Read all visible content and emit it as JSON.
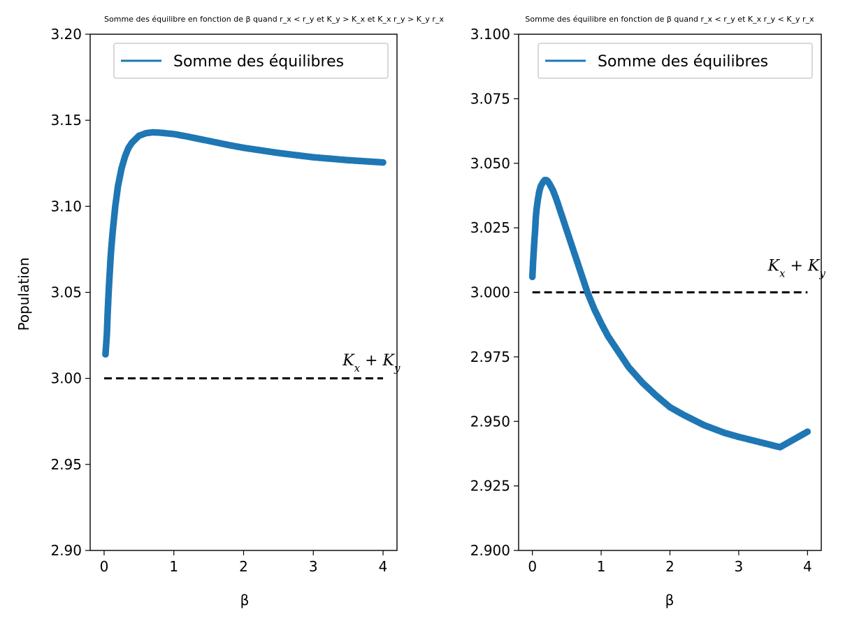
{
  "chart_data": [
    {
      "type": "scatter",
      "title": "Somme des équilibre en fonction de β quand r_x < r_y et K_y > K_x et K_x r_y > K_y r_x",
      "xlabel": "β",
      "ylabel": "Population",
      "xlim": [
        -0.2,
        4.2
      ],
      "ylim": [
        2.9,
        3.2
      ],
      "xticks": [
        "0",
        "1",
        "2",
        "3",
        "4"
      ],
      "yticks": [
        "2.90",
        "2.95",
        "3.00",
        "3.05",
        "3.10",
        "3.15",
        "3.20"
      ],
      "legend": {
        "label": "Somme des équilibres",
        "placement": "top-right"
      },
      "reference_line": {
        "y": 3.0,
        "x_range": [
          0,
          4
        ],
        "style": "dashed",
        "color": "#000000"
      },
      "annotation": {
        "text": "K_x + K_y",
        "x": 3.2,
        "y": 3.01
      },
      "series": [
        {
          "name": "Somme des équilibres",
          "color": "#1f77b4",
          "x": [
            0.02,
            0.04,
            0.05,
            0.06,
            0.07,
            0.08,
            0.09,
            0.1,
            0.12,
            0.14,
            0.16,
            0.18,
            0.2,
            0.25,
            0.3,
            0.35,
            0.4,
            0.5,
            0.6,
            0.7,
            0.8,
            1.0,
            1.2,
            1.5,
            1.8,
            2.0,
            2.5,
            3.0,
            3.5,
            4.0
          ],
          "y": [
            3.014,
            3.026,
            3.037,
            3.046,
            3.054,
            3.061,
            3.068,
            3.074,
            3.084,
            3.092,
            3.1,
            3.106,
            3.112,
            3.122,
            3.129,
            3.134,
            3.137,
            3.141,
            3.1425,
            3.143,
            3.1428,
            3.142,
            3.1405,
            3.138,
            3.1355,
            3.134,
            3.131,
            3.1285,
            3.1268,
            3.1255
          ]
        }
      ]
    },
    {
      "type": "scatter",
      "title": "Somme des équilibre en fonction de β quand r_x < r_y et K_x r_y < K_y r_x",
      "xlabel": "β",
      "ylabel": "",
      "xlim": [
        -0.2,
        4.2
      ],
      "ylim": [
        2.9,
        3.1
      ],
      "xticks": [
        "0",
        "1",
        "2",
        "3",
        "4"
      ],
      "yticks": [
        "2.900",
        "2.925",
        "2.950",
        "2.975",
        "3.000",
        "3.025",
        "3.050",
        "3.075",
        "3.100"
      ],
      "legend": {
        "label": "Somme des équilibres",
        "placement": "top-right"
      },
      "reference_line": {
        "y": 3.0,
        "x_range": [
          0,
          4
        ],
        "style": "dashed",
        "color": "#000000"
      },
      "annotation": {
        "text": "K_x + K_y",
        "x": 3.2,
        "y": 3.01
      },
      "series": [
        {
          "name": "Somme des équilibres",
          "color": "#1f77b4",
          "x": [
            0.0,
            0.01,
            0.02,
            0.03,
            0.04,
            0.05,
            0.06,
            0.08,
            0.1,
            0.12,
            0.15,
            0.18,
            0.2,
            0.22,
            0.25,
            0.3,
            0.35,
            0.4,
            0.5,
            0.6,
            0.7,
            0.8,
            0.9,
            1.0,
            1.1,
            1.2,
            1.4,
            1.6,
            1.8,
            2.0,
            2.2,
            2.5,
            2.8,
            3.0,
            3.3,
            3.6,
            4.0
          ],
          "y": [
            3.006,
            3.0115,
            3.016,
            3.0205,
            3.024,
            3.029,
            3.032,
            3.036,
            3.039,
            3.041,
            3.0425,
            3.0435,
            3.0435,
            3.0432,
            3.042,
            3.0395,
            3.036,
            3.032,
            3.024,
            3.016,
            3.008,
            3.0,
            2.9935,
            2.988,
            2.983,
            2.979,
            2.971,
            2.965,
            2.96,
            2.9555,
            2.9525,
            2.9485,
            2.9455,
            2.944,
            2.942,
            2.94,
            2.946
          ]
        }
      ]
    }
  ]
}
